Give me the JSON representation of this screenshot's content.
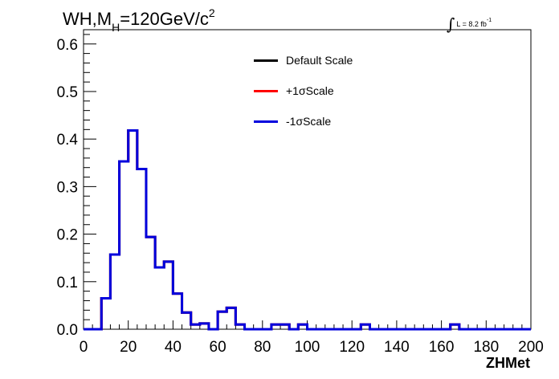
{
  "chart_data": {
    "type": "step",
    "title_parts": {
      "pre": "WH,M",
      "sub": "H",
      "mid": "=120GeV/c",
      "sup": "2"
    },
    "luminosity": {
      "text": "L = 8.2 fb",
      "sup": "-1"
    },
    "xlabel": "ZHMet",
    "ylabel": "",
    "xlim": [
      0,
      200
    ],
    "ylim": [
      0,
      0.63
    ],
    "x_ticks": [
      "0",
      "20",
      "40",
      "60",
      "80",
      "100",
      "120",
      "140",
      "160",
      "180",
      "200"
    ],
    "y_ticks": [
      "0.0",
      "0.1",
      "0.2",
      "0.3",
      "0.4",
      "0.5",
      "0.6"
    ],
    "bin_width": 4,
    "bin_edges_start": 0,
    "series": [
      {
        "name": "Default Scale",
        "color": "#000000"
      },
      {
        "name": "+1σScale",
        "color": "#ff0000"
      },
      {
        "name": "-1σScale",
        "color": "#0000dd"
      }
    ],
    "values": [
      0,
      0,
      0.065,
      0.157,
      0.353,
      0.418,
      0.337,
      0.194,
      0.13,
      0.142,
      0.075,
      0.035,
      0.01,
      0.012,
      0,
      0.037,
      0.045,
      0.01,
      0,
      0,
      0,
      0.01,
      0.01,
      0,
      0.01,
      0,
      0,
      0,
      0,
      0,
      0,
      0.01,
      0,
      0,
      0,
      0,
      0,
      0,
      0,
      0,
      0,
      0.01,
      0,
      0,
      0,
      0,
      0,
      0,
      0,
      0
    ]
  }
}
